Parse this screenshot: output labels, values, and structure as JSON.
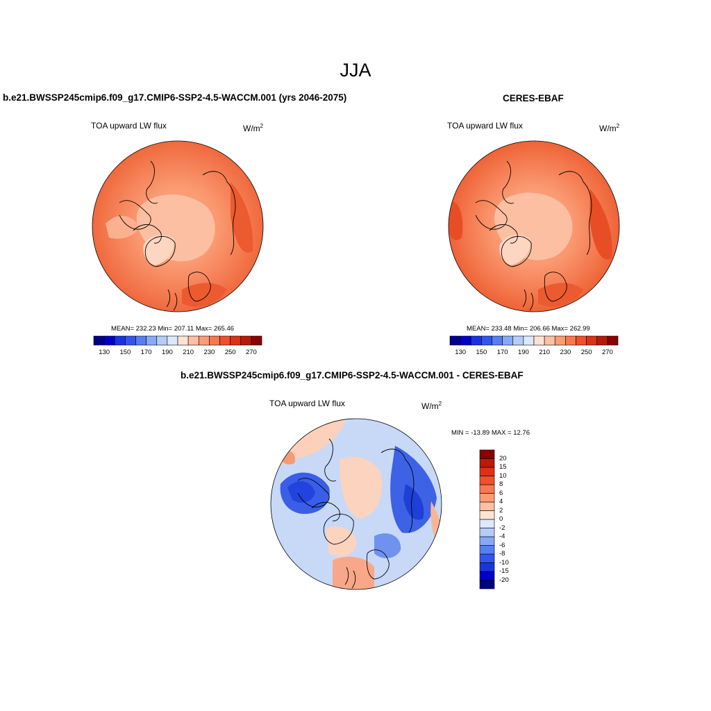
{
  "figure": {
    "title": "JJA"
  },
  "panels": [
    {
      "title": "b.e21.BWSSP245cmip6.f09_g17.CMIP6-SSP2-4.5-WACCM.001 (yrs 2046-2075)",
      "variable": "TOA upward LW flux",
      "units_base": "W/m",
      "units_exp": "2",
      "stats": "MEAN= 232.23  Min= 207.11  Max= 265.46"
    },
    {
      "title": "CERES-EBAF",
      "variable": "TOA upward LW flux",
      "units_base": "W/m",
      "units_exp": "2",
      "stats": "MEAN= 233.48  Min= 206.66  Max= 262.99"
    },
    {
      "title": "b.e21.BWSSP245cmip6.f09_g17.CMIP6-SSP2-4.5-WACCM.001 - CERES-EBAF",
      "variable": "TOA upward LW flux",
      "units_base": "W/m",
      "units_exp": "2",
      "stats": "MIN = -13.89 MAX =  12.76"
    }
  ],
  "colorbar_abs": {
    "colors": [
      "#00008b",
      "#0000c8",
      "#1a33e0",
      "#3355ee",
      "#5580f0",
      "#88aaf5",
      "#b5ccf8",
      "#dde8fb",
      "#fde3d4",
      "#fcc0a4",
      "#fb9c75",
      "#f8784f",
      "#f0502d",
      "#dc3215",
      "#b81a0a",
      "#8b0000"
    ],
    "tick_labels": [
      "130",
      "150",
      "170",
      "190",
      "210",
      "230",
      "250",
      "270"
    ]
  },
  "colorbar_diff": {
    "colors": [
      "#00008b",
      "#0000c8",
      "#1a33e0",
      "#3355ee",
      "#5580f0",
      "#88aaf5",
      "#b5ccf8",
      "#dde8fb",
      "#fde3d4",
      "#fcc0a4",
      "#fb9c75",
      "#f8784f",
      "#f0502d",
      "#dc3215",
      "#b81a0a",
      "#8b0000"
    ],
    "tick_labels": [
      "-20",
      "-15",
      "-10",
      "-8",
      "-6",
      "-4",
      "-2",
      "0",
      "2",
      "4",
      "6",
      "8",
      "10",
      "15",
      "20"
    ]
  }
}
